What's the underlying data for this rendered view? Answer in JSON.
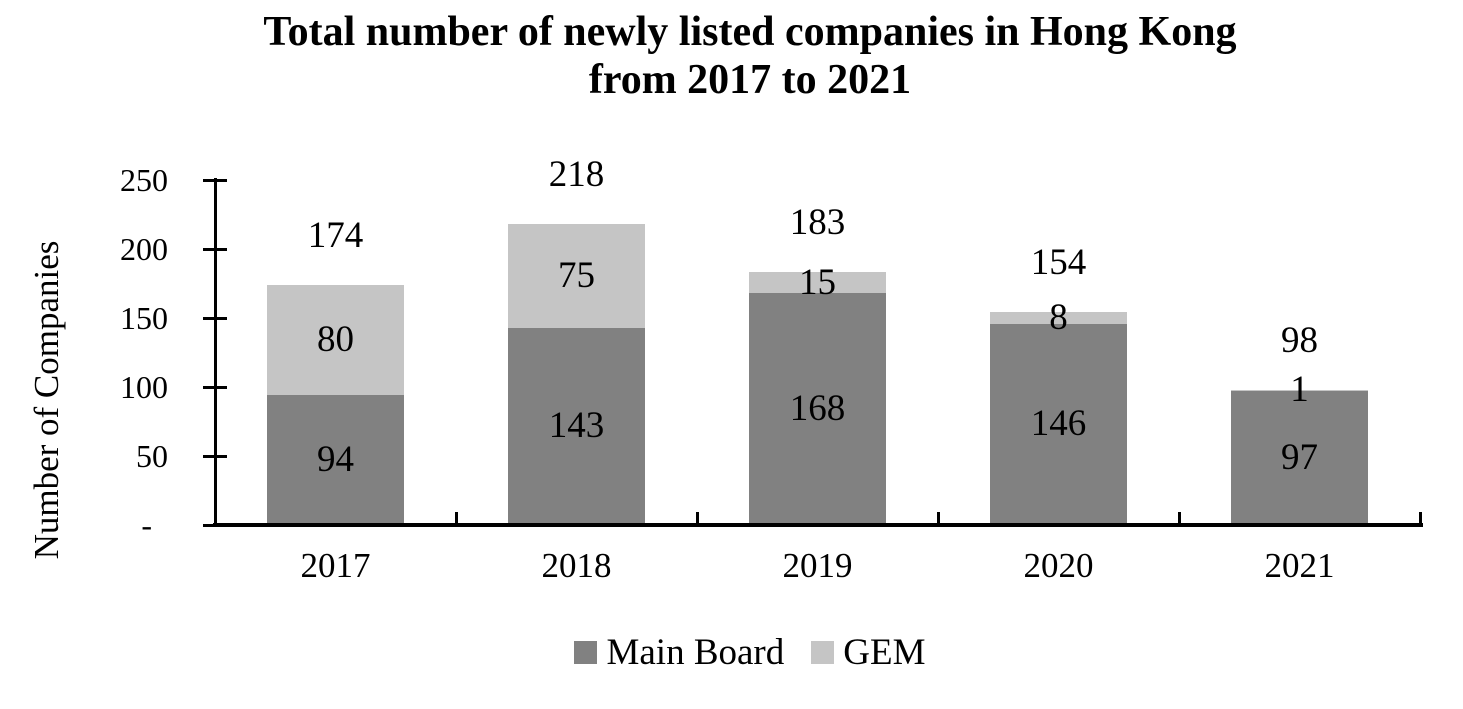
{
  "chart_data": {
    "type": "bar",
    "stacked": true,
    "title_line1": "Total number of newly listed companies in Hong Kong",
    "title_line2": "from 2017 to 2021",
    "ylabel": "Number of Companies",
    "categories": [
      "2017",
      "2018",
      "2019",
      "2020",
      "2021"
    ],
    "series": [
      {
        "name": "Main Board",
        "color": "#818181",
        "values": [
          94,
          143,
          168,
          146,
          97
        ]
      },
      {
        "name": "GEM",
        "color": "#C5C5C5",
        "values": [
          80,
          75,
          15,
          8,
          1
        ]
      }
    ],
    "totals": [
      174,
      218,
      183,
      154,
      98
    ],
    "ylim": [
      0,
      250
    ],
    "yticks": [
      {
        "value": 0,
        "label": "-"
      },
      {
        "value": 50,
        "label": "50"
      },
      {
        "value": 100,
        "label": "100"
      },
      {
        "value": 150,
        "label": "150"
      },
      {
        "value": 200,
        "label": "200"
      },
      {
        "value": 250,
        "label": "250"
      }
    ],
    "grid": false,
    "legend_position": "bottom",
    "axis_color": "#000000",
    "text_color": "#000000"
  }
}
